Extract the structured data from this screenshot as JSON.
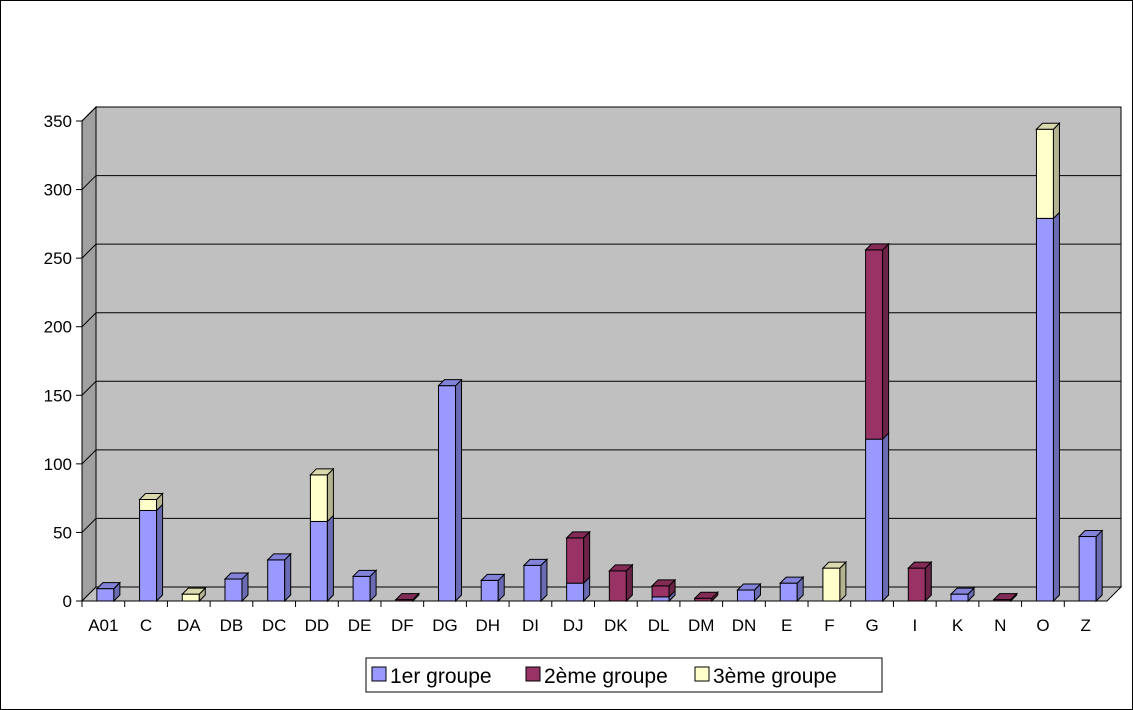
{
  "chart_data": {
    "type": "bar",
    "stacked": true,
    "three_d": true,
    "categories": [
      "A01",
      "C",
      "DA",
      "DB",
      "DC",
      "DD",
      "DE",
      "DF",
      "DG",
      "DH",
      "DI",
      "DJ",
      "DK",
      "DL",
      "DM",
      "DN",
      "E",
      "F",
      "G",
      "I",
      "K",
      "N",
      "O",
      "Z"
    ],
    "series": [
      {
        "name": "1er groupe",
        "color": "#9999ff",
        "values": [
          9,
          66,
          0,
          16,
          30,
          58,
          18,
          0,
          157,
          15,
          26,
          13,
          0,
          3,
          0,
          8,
          13,
          0,
          118,
          0,
          5,
          0,
          279,
          47
        ]
      },
      {
        "name": "2ème groupe",
        "color": "#993366",
        "values": [
          0,
          0,
          0,
          0,
          0,
          0,
          0,
          1,
          0,
          0,
          0,
          33,
          22,
          8,
          2,
          0,
          0,
          0,
          138,
          24,
          0,
          1,
          0,
          0
        ]
      },
      {
        "name": "3ème groupe",
        "color": "#ffffcc",
        "values": [
          0,
          8,
          5,
          0,
          0,
          34,
          0,
          0,
          0,
          0,
          0,
          0,
          0,
          0,
          0,
          0,
          0,
          24,
          0,
          0,
          0,
          0,
          65,
          0
        ]
      }
    ],
    "y_ticks": [
      0,
      50,
      100,
      150,
      200,
      250,
      300,
      350
    ],
    "ylim": [
      0,
      350
    ],
    "grid": true,
    "legend_position": "bottom",
    "plot_background": "#c0c0c0"
  }
}
